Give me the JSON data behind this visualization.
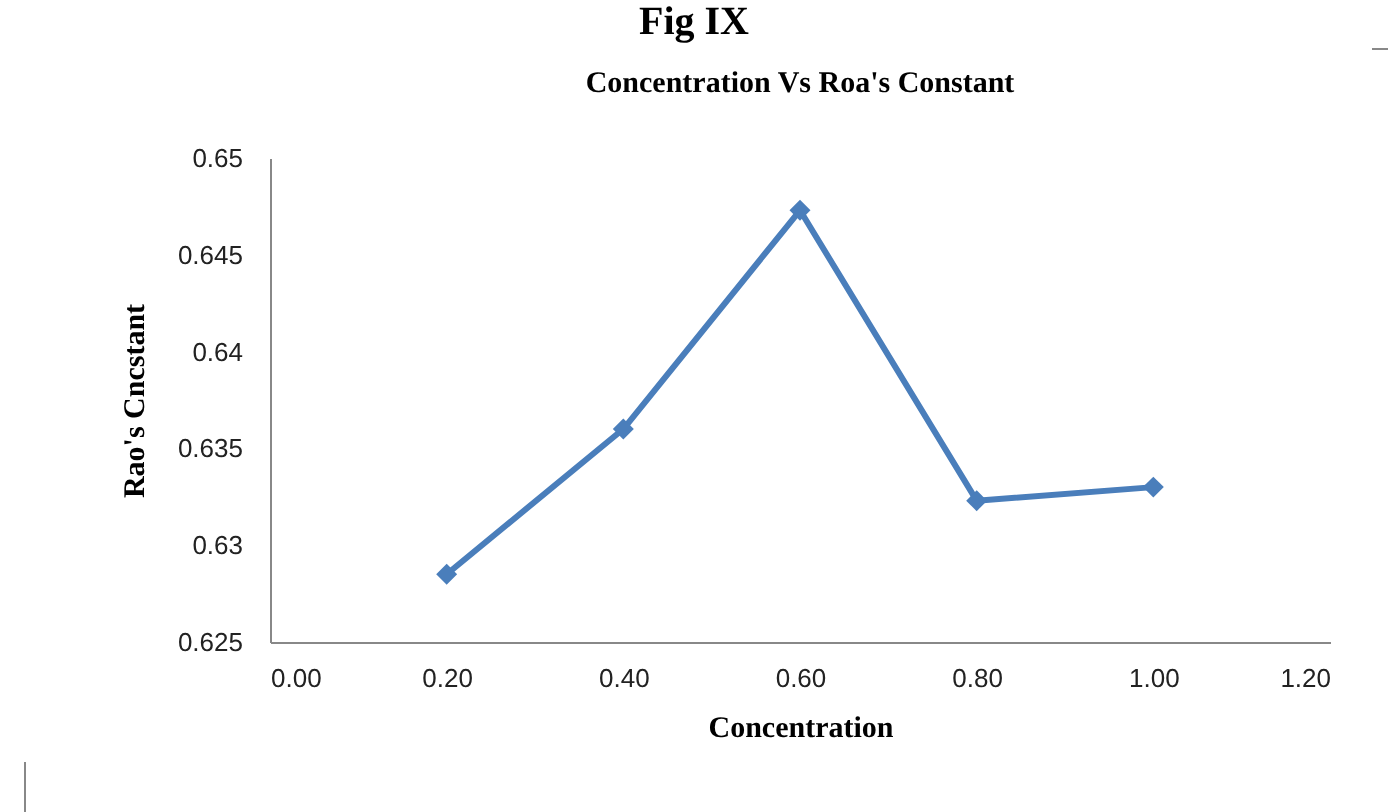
{
  "chart_data": {
    "type": "line",
    "title": "Concentration Vs Roa's Constant",
    "annotations": [
      "Fig IX"
    ],
    "xlabel": "Concentration",
    "ylabel": "Rao's Cncstant",
    "x": [
      0.2,
      0.4,
      0.6,
      0.8,
      1.0
    ],
    "series": [
      {
        "color": "#4a7ebb",
        "values": [
          0.6285,
          0.636,
          0.6473,
          0.6323,
          0.633
        ]
      }
    ],
    "xlim": [
      0,
      1.2
    ],
    "xticks": [
      {
        "value": 0,
        "label": "0.00"
      },
      {
        "value": 0.2,
        "label": "0.20"
      },
      {
        "value": 0.4,
        "label": "0.40"
      },
      {
        "value": 0.6,
        "label": "0.60"
      },
      {
        "value": 0.8,
        "label": "0.80"
      },
      {
        "value": 1.0,
        "label": "1.00"
      },
      {
        "value": 1.2,
        "label": "1.20"
      }
    ],
    "ylim": [
      0.625,
      0.65
    ],
    "yticks": [
      0.625,
      0.63,
      0.635,
      0.64,
      0.645,
      0.65
    ],
    "marker": "diamond",
    "line_style": "solid",
    "grid": false
  }
}
